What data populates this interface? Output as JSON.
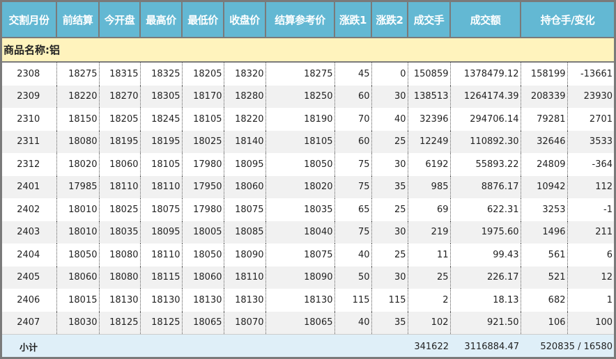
{
  "headers": [
    "交割月份",
    "前结算",
    "今开盘",
    "最高价",
    "最低价",
    "收盘价",
    "结算参考价",
    "涨跌1",
    "涨跌2",
    "成交手",
    "成交额",
    "持仓手/变化"
  ],
  "product_label": "商品名称:铝",
  "rows": [
    [
      "2308",
      "18275",
      "18315",
      "18325",
      "18205",
      "18320",
      "18275",
      "45",
      "0",
      "150859",
      "1378479.12",
      "158199",
      "-13661"
    ],
    [
      "2309",
      "18220",
      "18270",
      "18305",
      "18170",
      "18280",
      "18250",
      "60",
      "30",
      "138513",
      "1264174.39",
      "208339",
      "23930"
    ],
    [
      "2310",
      "18150",
      "18205",
      "18245",
      "18105",
      "18220",
      "18190",
      "70",
      "40",
      "32396",
      "294706.14",
      "79281",
      "2701"
    ],
    [
      "2311",
      "18080",
      "18195",
      "18195",
      "18025",
      "18140",
      "18105",
      "60",
      "25",
      "12249",
      "110892.30",
      "32646",
      "3533"
    ],
    [
      "2312",
      "18020",
      "18060",
      "18105",
      "17980",
      "18095",
      "18050",
      "75",
      "30",
      "6192",
      "55893.22",
      "24809",
      "-364"
    ],
    [
      "2401",
      "17985",
      "18110",
      "18110",
      "17950",
      "18060",
      "18020",
      "75",
      "35",
      "985",
      "8876.17",
      "10942",
      "112"
    ],
    [
      "2402",
      "18010",
      "18025",
      "18075",
      "17980",
      "18075",
      "18035",
      "65",
      "25",
      "69",
      "622.31",
      "3253",
      "-1"
    ],
    [
      "2403",
      "18010",
      "18035",
      "18095",
      "18005",
      "18085",
      "18040",
      "75",
      "30",
      "219",
      "1975.60",
      "1496",
      "211"
    ],
    [
      "2404",
      "18050",
      "18080",
      "18110",
      "18050",
      "18090",
      "18075",
      "40",
      "25",
      "11",
      "99.43",
      "561",
      "6"
    ],
    [
      "2405",
      "18060",
      "18080",
      "18115",
      "18060",
      "18110",
      "18090",
      "50",
      "30",
      "25",
      "226.17",
      "521",
      "12"
    ],
    [
      "2406",
      "18015",
      "18130",
      "18130",
      "18130",
      "18130",
      "18130",
      "115",
      "115",
      "2",
      "18.13",
      "682",
      "1"
    ],
    [
      "2407",
      "18030",
      "18125",
      "18125",
      "18065",
      "18070",
      "18065",
      "40",
      "35",
      "102",
      "921.50",
      "106",
      "100"
    ]
  ],
  "subtotal": {
    "label": "小计",
    "volume": "341622",
    "turnover": "3116884.47",
    "open_interest": "520835 / 16580"
  }
}
